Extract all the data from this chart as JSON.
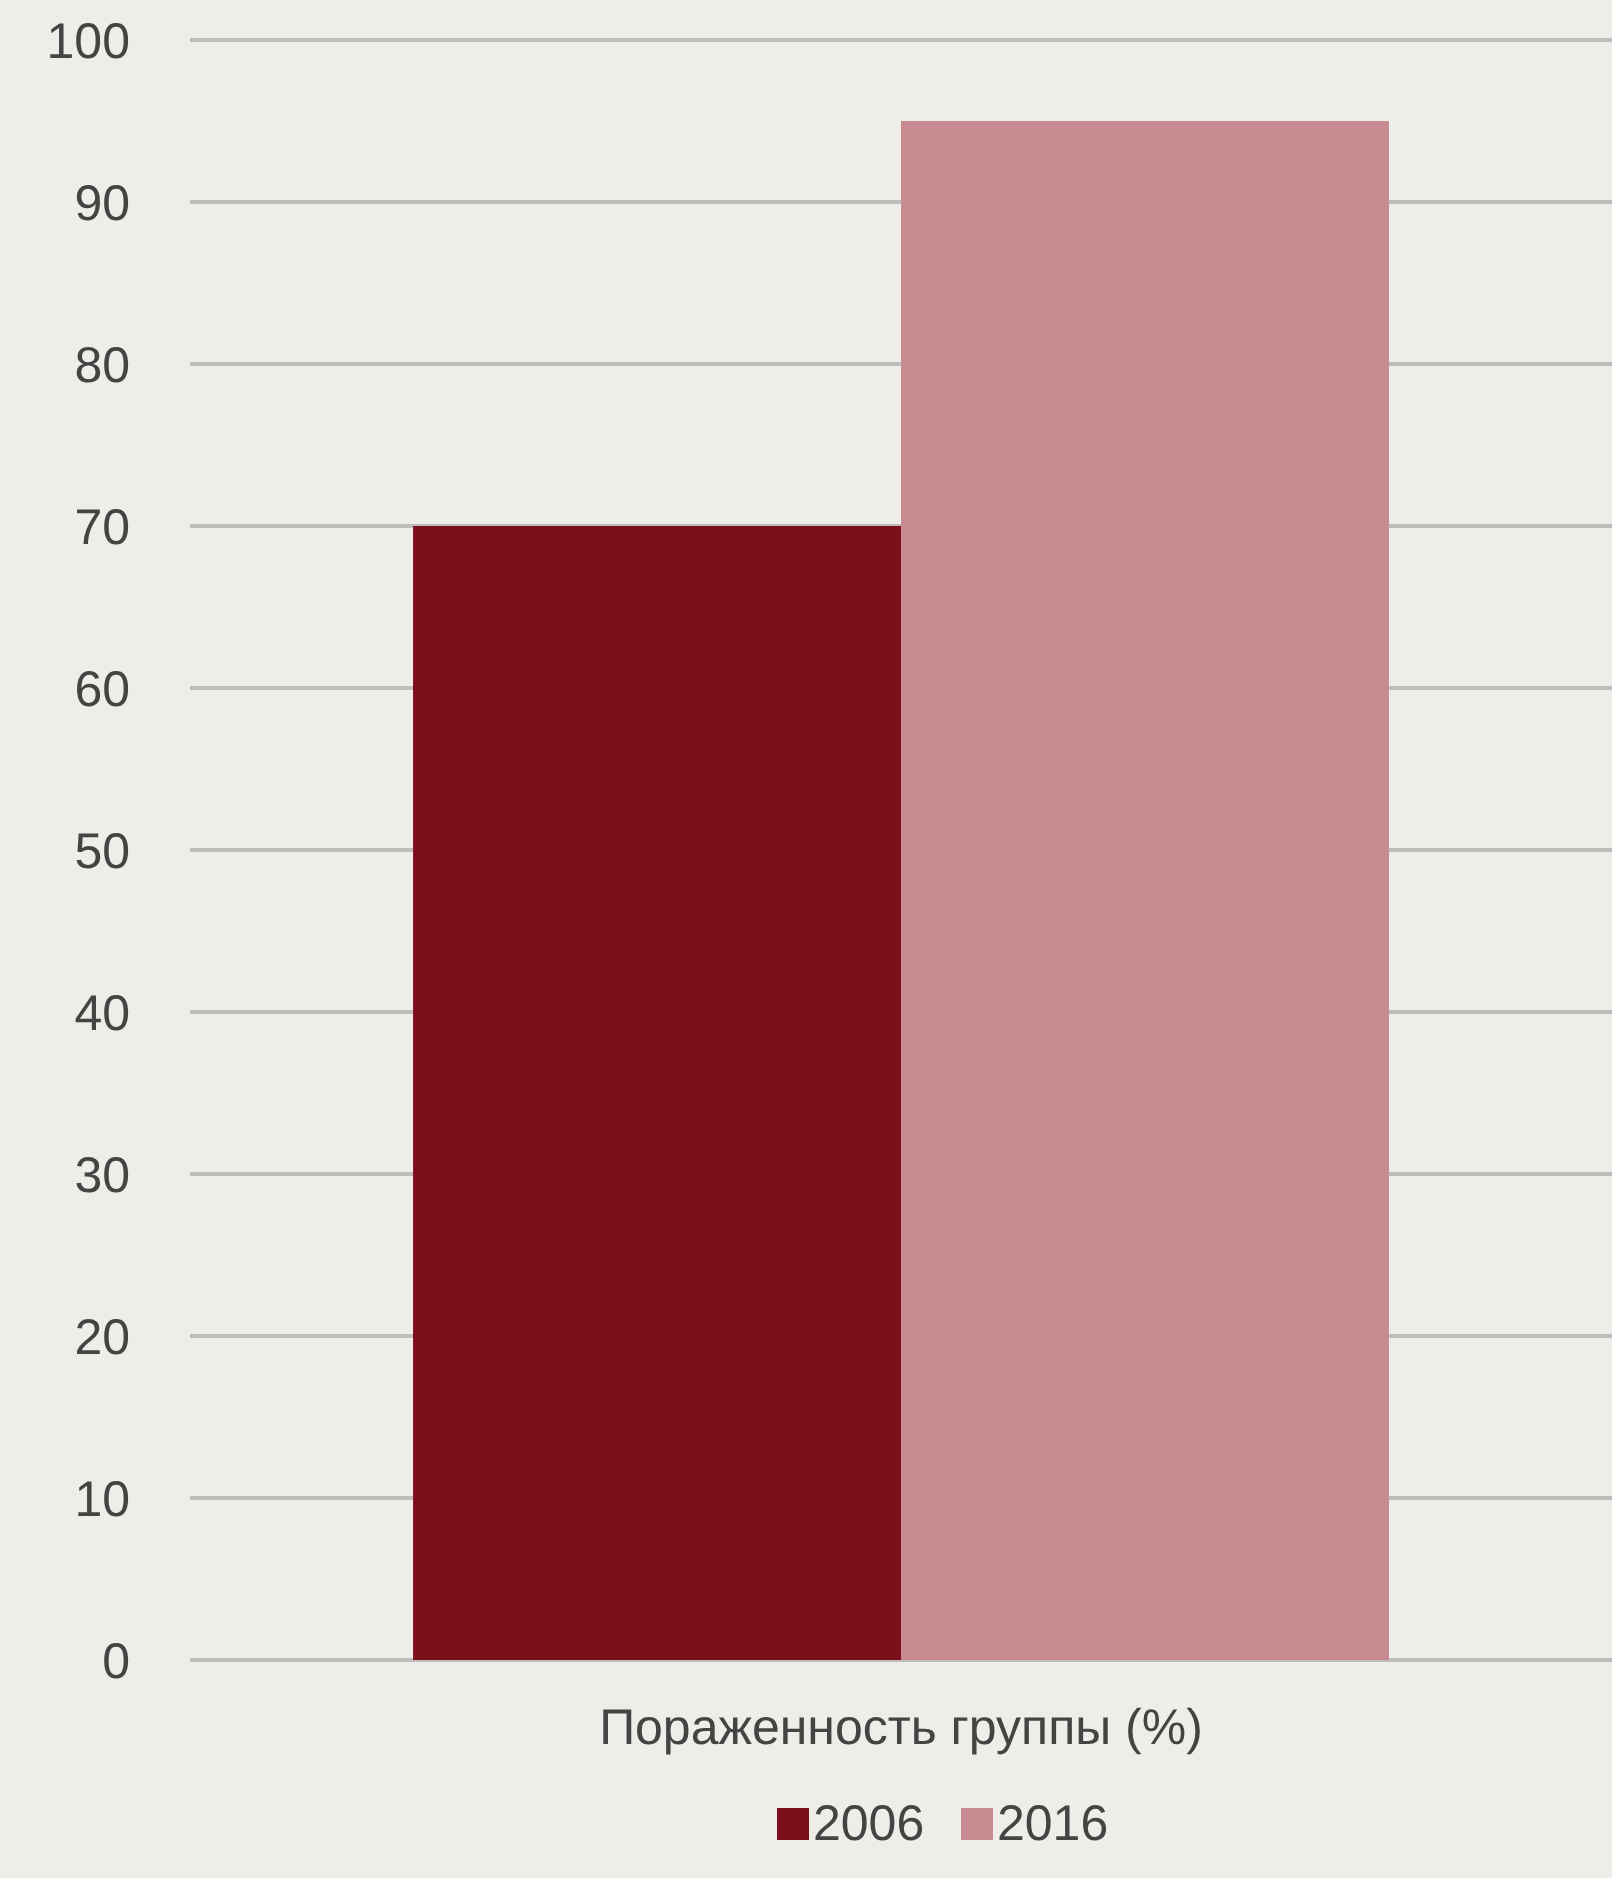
{
  "chart_data": {
    "type": "bar",
    "categories": [
      "Пораженность группы (%)"
    ],
    "series": [
      {
        "name": "2006",
        "color": "#7b0f1c",
        "values": [
          70
        ]
      },
      {
        "name": "2016",
        "color": "#c88b92",
        "values": [
          95
        ]
      }
    ],
    "ylim": [
      0,
      100
    ],
    "yticks": [
      0,
      10,
      20,
      30,
      40,
      50,
      60,
      70,
      80,
      90,
      100
    ],
    "grid": "y",
    "legend": "bottom"
  }
}
